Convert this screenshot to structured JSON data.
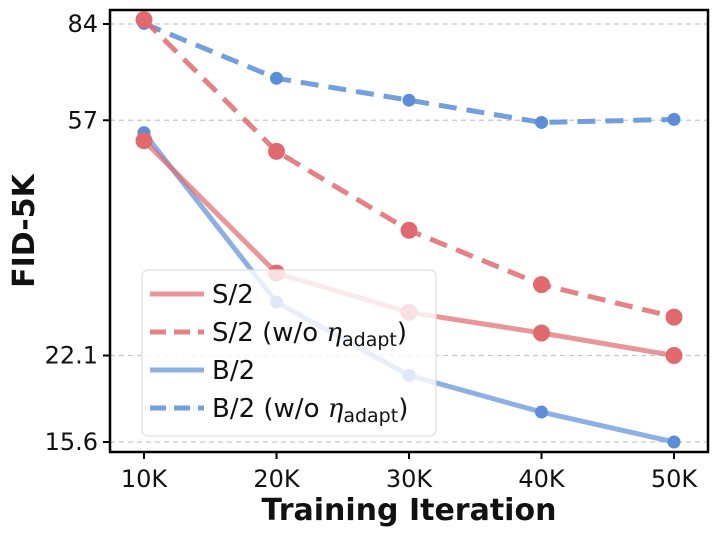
{
  "chart_data": {
    "type": "line",
    "xlabel": "Training Iteration",
    "ylabel": "FID-5K",
    "x": [
      10000,
      20000,
      30000,
      40000,
      50000
    ],
    "x_tick_labels": [
      "10K",
      "20K",
      "30K",
      "40K",
      "50K"
    ],
    "xlim": [
      10000,
      50000
    ],
    "y_scale": "log",
    "ylim": [
      15.6,
      84
    ],
    "y_ticks": [
      15.6,
      22.1,
      57,
      84
    ],
    "y_tick_labels": [
      "15.6",
      "22.1",
      "57",
      "84"
    ],
    "grid": "horizontal dashed at y ticks",
    "legend_position": "lower-left",
    "series": [
      {
        "name": "S/2",
        "legend_main": "S/2",
        "legend_suffix": "",
        "legend_sub": "",
        "legend_close": "",
        "color": "#e06a6e",
        "dashed": false,
        "values": [
          52.5,
          30.8,
          26.3,
          24.2,
          22.1
        ]
      },
      {
        "name": "S/2 (w/o η_adapt)",
        "legend_main": "S/2 (w/o ",
        "legend_suffix": "η",
        "legend_sub": "adapt",
        "legend_close": ")",
        "color": "#e06a6e",
        "dashed": true,
        "values": [
          85.5,
          50.3,
          36.6,
          29.4,
          25.8
        ]
      },
      {
        "name": "B/2",
        "legend_main": "B/2",
        "legend_suffix": "",
        "legend_sub": "",
        "legend_close": "",
        "color": "#5b8dd9",
        "dashed": false,
        "values": [
          54.2,
          27.4,
          20.4,
          17.6,
          15.6
        ]
      },
      {
        "name": "B/2 (w/o η_adapt)",
        "legend_main": "B/2 (w/o ",
        "legend_suffix": "η",
        "legend_sub": "adapt",
        "legend_close": ")",
        "color": "#5b8dd9",
        "dashed": true,
        "values": [
          84.2,
          67.5,
          61.8,
          56.5,
          57.2
        ]
      }
    ]
  }
}
